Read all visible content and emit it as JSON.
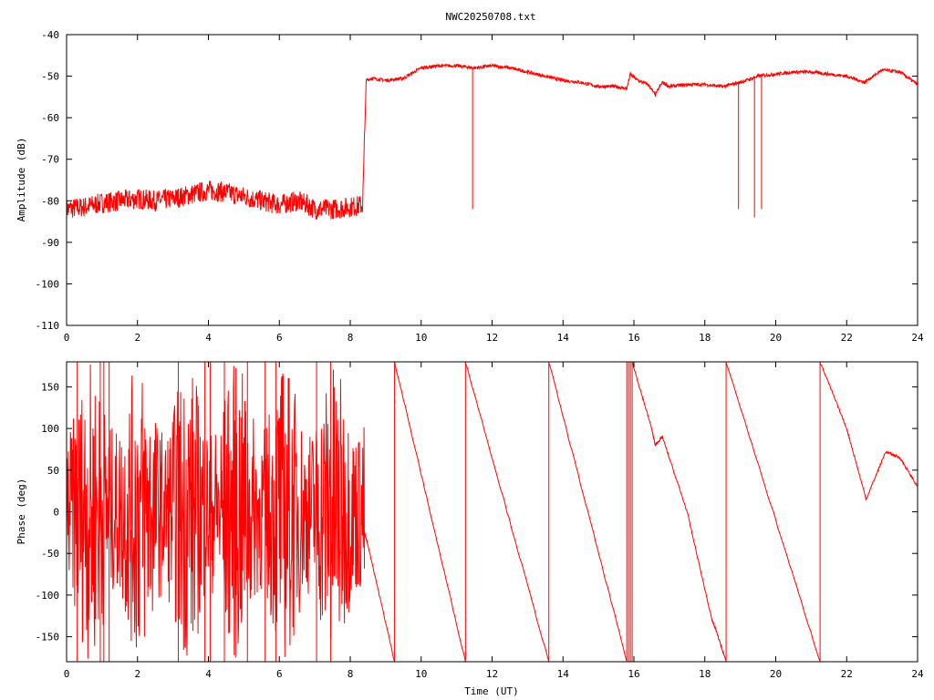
{
  "chart_data": [
    {
      "type": "line",
      "title": "NWC20250708.txt",
      "xlabel": "",
      "ylabel": "Amplitude (dB)",
      "xlim": [
        0,
        24
      ],
      "ylim": [
        -110,
        -40
      ],
      "xticks": [
        "0",
        "2",
        "4",
        "6",
        "8",
        "10",
        "12",
        "14",
        "16",
        "18",
        "20",
        "22",
        "24"
      ],
      "yticks": [
        "-40",
        "-50",
        "-60",
        "-70",
        "-80",
        "-90",
        "-100",
        "-110"
      ],
      "grid": false,
      "color": "#ff0000",
      "trend": {
        "x": [
          0,
          0.5,
          1,
          1.5,
          2,
          2.5,
          3,
          3.5,
          4,
          4.5,
          5,
          5.5,
          6,
          6.5,
          6.8,
          7,
          7.5,
          8,
          8.35,
          8.45,
          8.6,
          9,
          9.5,
          10,
          10.5,
          11,
          11.5,
          12,
          12.5,
          13,
          13.5,
          14,
          14.5,
          15,
          15.5,
          15.8,
          15.9,
          16.1,
          16.4,
          16.6,
          16.8,
          17,
          17.5,
          18,
          18.5,
          19,
          19.5,
          20,
          20.5,
          21,
          21.5,
          22,
          22.5,
          23,
          23.5,
          24
        ],
        "y": [
          -82,
          -81.5,
          -80.5,
          -80,
          -79.5,
          -80,
          -79.5,
          -78.5,
          -77.5,
          -78,
          -79,
          -80,
          -81,
          -80,
          -81,
          -82,
          -82,
          -81.5,
          -81,
          -51,
          -50.5,
          -51,
          -50.5,
          -48,
          -47.5,
          -47.5,
          -48,
          -47.5,
          -48,
          -49,
          -50,
          -51,
          -51.5,
          -52.5,
          -52.5,
          -53,
          -49.5,
          -51,
          -52,
          -54.5,
          -51.5,
          -52.5,
          -52,
          -52,
          -52.5,
          -51.5,
          -50,
          -49.5,
          -49,
          -49,
          -49.5,
          -50,
          -51.5,
          -48.5,
          -49,
          -52
        ]
      },
      "noise_band": {
        "x_range": [
          0,
          8.4
        ],
        "amplitude_db": 2.5
      },
      "spikes": [
        {
          "x": 11.45,
          "y": -82
        },
        {
          "x": 18.95,
          "y": -82
        },
        {
          "x": 19.4,
          "y": -84
        },
        {
          "x": 19.6,
          "y": -82
        }
      ]
    },
    {
      "type": "line",
      "title": "",
      "xlabel": "Time (UT)",
      "ylabel": "Phase (deg)",
      "xlim": [
        0,
        24
      ],
      "ylim": [
        -180,
        180
      ],
      "xticks": [
        "0",
        "2",
        "4",
        "6",
        "8",
        "10",
        "12",
        "14",
        "16",
        "18",
        "20",
        "22",
        "24"
      ],
      "yticks": [
        "150",
        "100",
        "50",
        "0",
        "-50",
        "-100",
        "-150"
      ],
      "grid": false,
      "color": "#ff0000",
      "noise_band": {
        "x_range": [
          0,
          8.4
        ],
        "range_deg": [
          -180,
          180
        ]
      },
      "segments": [
        {
          "x": [
            8.3,
            8.5,
            9.25
          ],
          "y": [
            -10,
            -40,
            -180
          ]
        },
        {
          "x": [
            9.25,
            11.25
          ],
          "y": [
            180,
            -180
          ]
        },
        {
          "x": [
            11.25,
            13.6
          ],
          "y": [
            180,
            -180
          ]
        },
        {
          "x": [
            13.6,
            15.8
          ],
          "y": [
            180,
            -180
          ]
        },
        {
          "x": [
            15.95,
            16.5,
            16.6,
            16.8,
            17.5,
            18.2,
            18.3,
            18.6
          ],
          "y": [
            180,
            100,
            80,
            90,
            0,
            -130,
            -140,
            -180
          ]
        },
        {
          "x": [
            18.6,
            21.25
          ],
          "y": [
            180,
            -180
          ]
        },
        {
          "x": [
            21.25,
            22,
            22.55,
            23.1,
            23.5,
            24
          ],
          "y": [
            180,
            100,
            15,
            72,
            65,
            30
          ]
        }
      ],
      "verticals": [
        0.3,
        0.95,
        1.05,
        1.2,
        3.15,
        3.9,
        4.05,
        4.45,
        5.1,
        5.6,
        5.9,
        7.05,
        7.45,
        9.25,
        11.25,
        13.6,
        15.8,
        15.85,
        15.9,
        15.95,
        18.6,
        21.25
      ]
    }
  ]
}
